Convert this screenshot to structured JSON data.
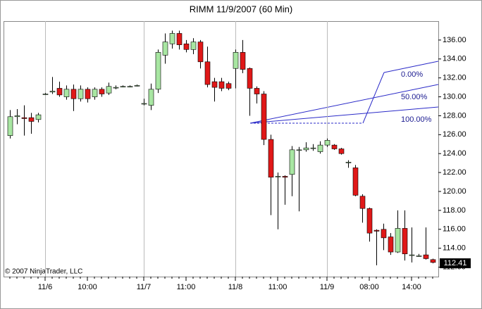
{
  "chart_data": {
    "type": "candlestick",
    "title": "RIMM  11/9/2007 (60 Min)",
    "copyright": "© 2007 NinjaTrader, LLC",
    "categories": [
      null,
      null,
      null,
      null,
      null,
      "11/6",
      null,
      null,
      null,
      null,
      null,
      "10:00",
      null,
      null,
      null,
      null,
      null,
      null,
      null,
      "11/7",
      null,
      null,
      null,
      null,
      null,
      "11:00",
      null,
      null,
      null,
      null,
      null,
      null,
      "11/8",
      null,
      null,
      null,
      null,
      null,
      "11:00",
      null,
      null,
      null,
      null,
      null,
      null,
      "11/9",
      null,
      null,
      null,
      null,
      null,
      "08:00",
      null,
      null,
      null,
      null,
      null,
      "14:00",
      null,
      null,
      null
    ],
    "open": [
      125.9,
      127.9,
      127.8,
      127.8,
      127.6,
      130.3,
      130.5,
      130.9,
      130.0,
      130.8,
      129.8,
      130.8,
      130.0,
      130.8,
      130.4,
      131.0,
      131.1,
      131.1,
      131.2,
      129.3,
      129.1,
      130.8,
      134.4,
      135.6,
      136.7,
      135.6,
      135.0,
      135.8,
      133.7,
      131.6,
      131.6,
      131.4,
      133.0,
      134.7,
      133.0,
      130.9,
      130.3,
      125.5,
      121.6,
      121.6,
      121.8,
      124.4,
      124.4,
      124.6,
      124.2,
      124.9,
      124.9,
      124.5,
      123.1,
      122.5,
      119.5,
      118.2,
      115.9,
      116.0,
      115.2,
      113.6,
      116.1,
      113.3,
      113.2,
      113.3,
      112.8
    ],
    "high": [
      128.6,
      128.7,
      129.1,
      128.3,
      128.3,
      130.4,
      132.1,
      131.6,
      131.2,
      131.3,
      131.2,
      131.0,
      131.0,
      131.0,
      131.5,
      131.2,
      131.2,
      131.2,
      131.3,
      129.8,
      131.4,
      135.0,
      136.7,
      137.0,
      137.0,
      136.0,
      136.2,
      136.0,
      135.3,
      132.0,
      132.0,
      131.6,
      135.0,
      136.0,
      133.1,
      131.1,
      130.6,
      126.0,
      122.0,
      121.7,
      124.8,
      124.7,
      125.2,
      125.0,
      125.3,
      125.6,
      125.0,
      124.6,
      123.3,
      122.8,
      119.7,
      118.3,
      116.0,
      116.6,
      115.6,
      118.0,
      118.0,
      116.2,
      113.4,
      116.2,
      112.9
    ],
    "low": [
      125.6,
      127.1,
      125.9,
      126.1,
      127.3,
      130.2,
      130.3,
      130.0,
      129.7,
      128.5,
      129.5,
      129.4,
      129.7,
      130.0,
      130.2,
      130.8,
      131.0,
      131.0,
      131.1,
      129.1,
      128.6,
      130.4,
      133.5,
      135.1,
      135.0,
      134.7,
      134.5,
      133.0,
      131.0,
      129.5,
      130.6,
      130.7,
      130.9,
      132.5,
      128.0,
      129.3,
      124.9,
      117.5,
      116.0,
      118.6,
      119.5,
      117.9,
      124.2,
      124.3,
      124.0,
      124.7,
      124.4,
      123.9,
      122.5,
      119.5,
      116.7,
      114.7,
      112.2,
      113.8,
      113.3,
      113.5,
      112.7,
      112.5,
      113.1,
      112.8,
      112.4
    ],
    "close": [
      127.9,
      128.0,
      127.7,
      127.4,
      128.1,
      130.3,
      130.6,
      130.2,
      130.8,
      129.8,
      130.8,
      129.8,
      130.8,
      130.3,
      131.1,
      131.0,
      131.1,
      131.1,
      131.2,
      129.3,
      130.8,
      134.7,
      135.8,
      136.7,
      135.5,
      135.0,
      135.8,
      133.7,
      131.3,
      131.0,
      130.9,
      130.9,
      134.7,
      132.9,
      130.9,
      130.3,
      125.5,
      121.5,
      121.6,
      121.5,
      124.4,
      124.4,
      124.6,
      124.6,
      124.9,
      125.4,
      124.5,
      124.0,
      123.1,
      119.6,
      118.2,
      115.6,
      115.8,
      115.1,
      113.6,
      116.1,
      113.4,
      113.3,
      113.2,
      112.9,
      112.5
    ],
    "up_color": "#a8e6a2",
    "down_color": "#e01818",
    "last_price": 112.41,
    "ylim": [
      111,
      138
    ],
    "yticks": [
      {
        "value": 112,
        "label": "112.00"
      },
      {
        "value": 114,
        "label": "114.00"
      },
      {
        "value": 116,
        "label": "116.00"
      },
      {
        "value": 118,
        "label": "118.00"
      },
      {
        "value": 120,
        "label": "120.00"
      },
      {
        "value": 122,
        "label": "122.00"
      },
      {
        "value": 124,
        "label": "124.00"
      },
      {
        "value": 126,
        "label": "126.00"
      },
      {
        "value": 128,
        "label": "128.00"
      },
      {
        "value": 130,
        "label": "130.00"
      },
      {
        "value": 132,
        "label": "132.00"
      },
      {
        "value": 134,
        "label": "134.00"
      },
      {
        "value": 136,
        "label": "136.00"
      }
    ],
    "annotations": [
      "0.00%",
      "50.00%",
      "100.00%"
    ]
  }
}
